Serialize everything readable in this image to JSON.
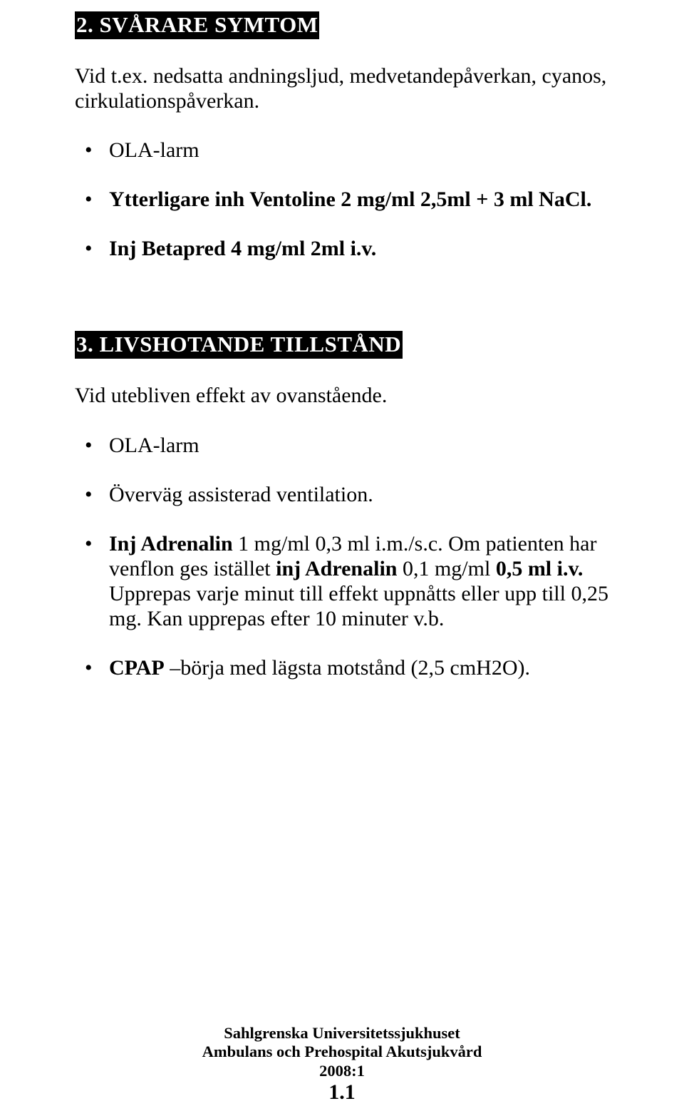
{
  "section2": {
    "heading": "2. SVÅRARE SYMTOM",
    "intro": "Vid t.ex. nedsatta andningsljud, medvetandepåverkan, cyanos, cirkulationspåverkan.",
    "bullets": [
      {
        "text": "OLA-larm",
        "bold": false
      },
      {
        "text": "Ytterligare inh Ventoline 2 mg/ml 2,5ml + 3 ml NaCl.",
        "bold": true
      },
      {
        "text": "Inj Betapred 4 mg/ml 2ml i.v.",
        "bold": true
      }
    ]
  },
  "section3": {
    "heading": "3. LIVSHOTANDE TILLSTÅND",
    "intro": "Vid utebliven effekt av ovanstående.",
    "bullets": [
      {
        "html": "OLA-larm"
      },
      {
        "html": "Överväg assisterad ventilation."
      },
      {
        "html": "<span class=\"bold\">Inj Adrenalin</span> 1 mg/ml 0,3 ml i.m./s.c. Om patienten har venflon ges istället <span class=\"bold\">inj Adrenalin</span> 0,1 mg/ml <span class=\"bold\">0,5 ml i.v.</span> Upprepas varje minut till effekt uppnåtts eller upp till 0,25 mg. Kan upprepas efter 10 minuter  v.b."
      },
      {
        "html": "<span class=\"bold\">CPAP</span> –börja med lägsta motstånd (2,5 cmH2O)."
      }
    ]
  },
  "footer": {
    "line1": "Sahlgrenska Universitetssjukhuset",
    "line2": "Ambulans och Prehospital Akutsjukvård",
    "line3": "2008:1",
    "page": "1.1"
  }
}
